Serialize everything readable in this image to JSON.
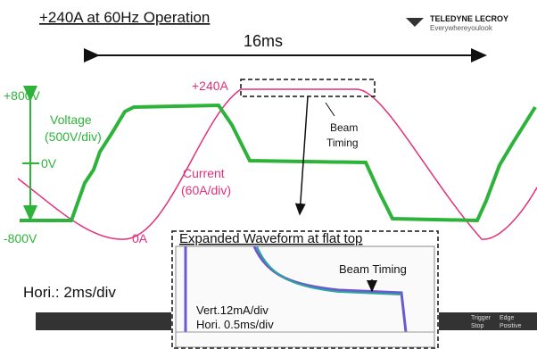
{
  "header": {
    "title": "+240A at 60Hz Operation"
  },
  "logo": {
    "brand": "TELEDYNE LECROY",
    "tagline": "Everywhereyoulook"
  },
  "period": "16ms",
  "voltage_axis": {
    "top": "+800V",
    "zero": "0V",
    "bottom": "-800V"
  },
  "voltage_label": {
    "name": "Voltage",
    "scale": "(500V/div)"
  },
  "current_label": {
    "peak": "+240A",
    "name": "Current",
    "scale": "(60A/div)",
    "zero": "0A"
  },
  "beam_timing": {
    "line1": "Beam",
    "line2": "Timing"
  },
  "inset": {
    "title": "Expanded Waveform at flat top",
    "beam_timing": "Beam Timing",
    "vert": "Vert.12mA/div",
    "hori": "Hori. 0.5ms/div"
  },
  "footer": {
    "hori": "Hori.: 2ms/div"
  },
  "status": {
    "trigger": "Trigger",
    "stop": "Stop",
    "edge": "Edge",
    "positive": "Positive"
  }
}
